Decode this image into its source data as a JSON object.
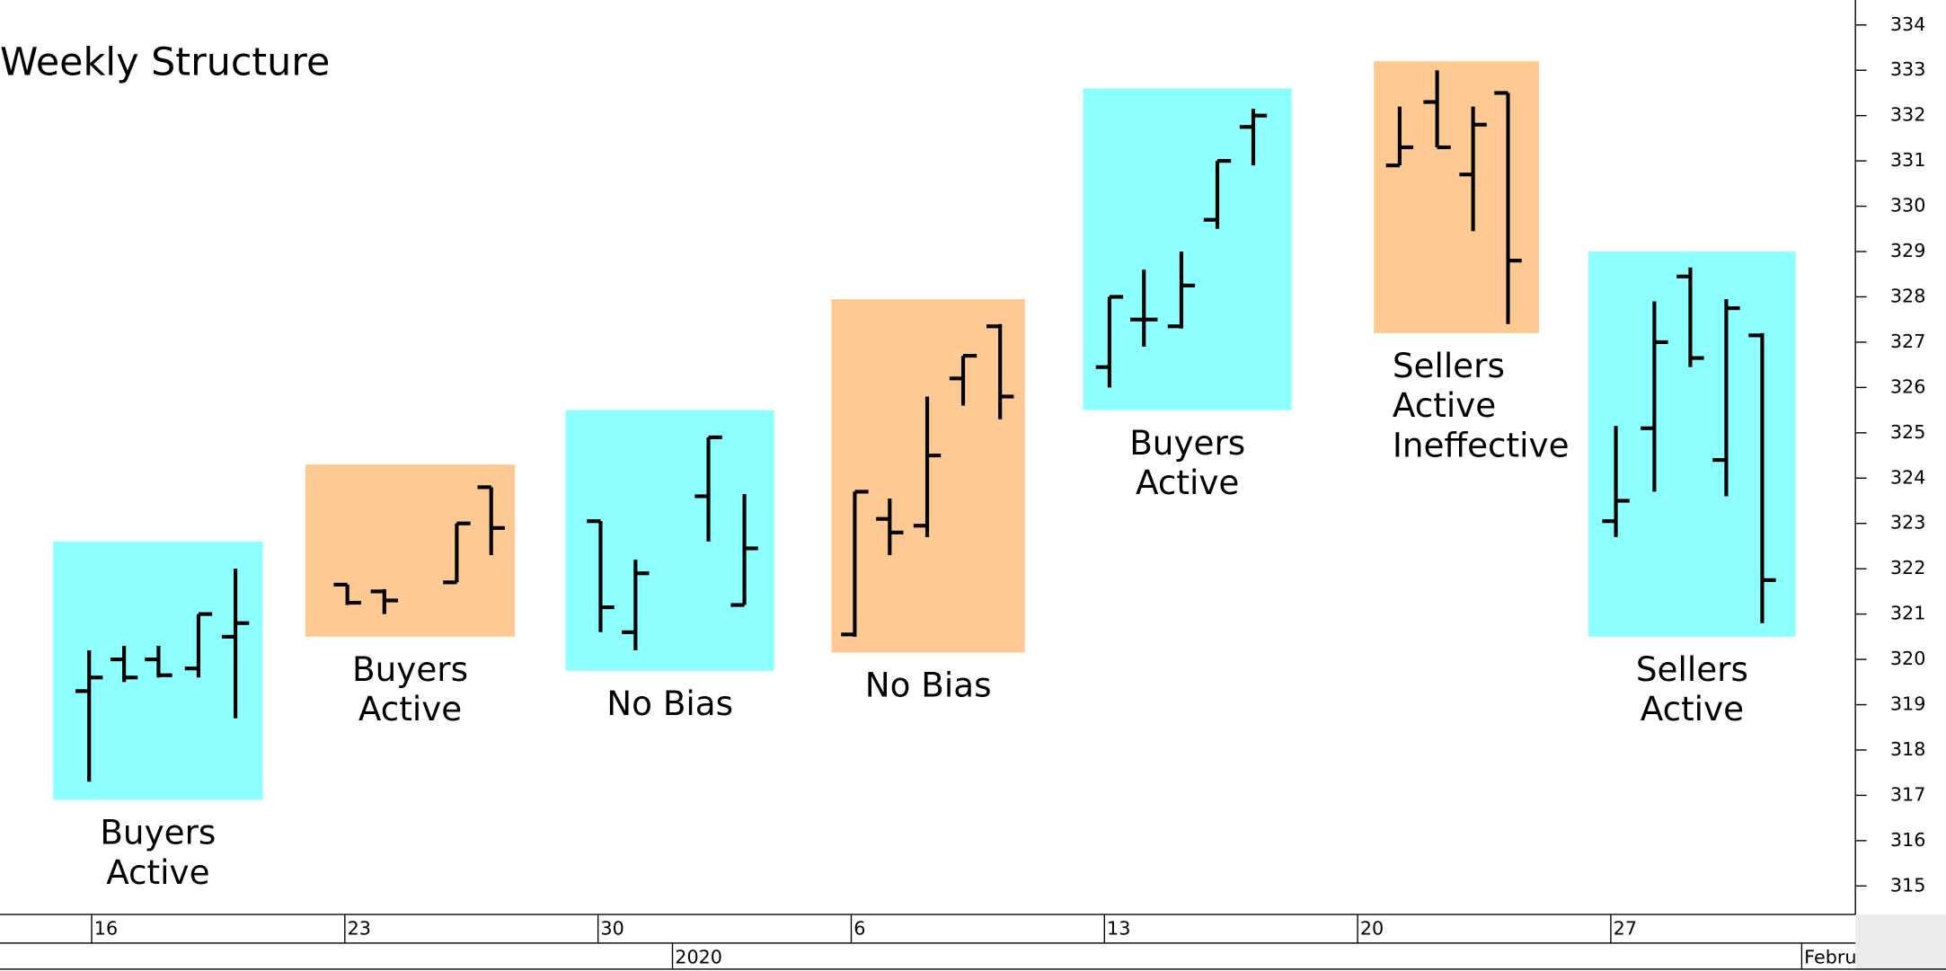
{
  "chart_data": {
    "type": "ohlc",
    "title": "Weekly Structure",
    "xlim": [
      -1.81,
      34.83
    ],
    "ylim": [
      314.37,
      334.55
    ],
    "yticks": [
      315,
      316,
      317,
      318,
      319,
      320,
      321,
      322,
      323,
      324,
      325,
      326,
      327,
      328,
      329,
      330,
      331,
      332,
      333,
      334
    ],
    "xticks": [
      {
        "value": 0,
        "label": "16"
      },
      {
        "value": 5,
        "label": "23"
      },
      {
        "value": 10,
        "label": "30"
      },
      {
        "value": 15,
        "label": "6"
      },
      {
        "value": 20,
        "label": "13"
      },
      {
        "value": 25,
        "label": "20"
      },
      {
        "value": 30,
        "label": "27"
      }
    ],
    "xticks2": [
      {
        "value": 11.47,
        "label": "2020"
      },
      {
        "value": 33.77,
        "label": "Febru"
      }
    ],
    "color": "#000000",
    "bars": [
      {
        "x": -0.05,
        "open": 319.3,
        "high": 320.2,
        "low": 317.3,
        "close": 319.6
      },
      {
        "x": 0.64,
        "open": 320.0,
        "high": 320.3,
        "low": 319.5,
        "close": 319.6
      },
      {
        "x": 1.32,
        "open": 320.0,
        "high": 320.3,
        "low": 319.6,
        "close": 319.65
      },
      {
        "x": 2.11,
        "open": 319.8,
        "high": 321.0,
        "low": 319.6,
        "close": 321.0
      },
      {
        "x": 2.84,
        "open": 320.5,
        "high": 322.0,
        "low": 318.7,
        "close": 320.8
      },
      {
        "x": 5.05,
        "open": 321.65,
        "high": 321.65,
        "low": 321.2,
        "close": 321.25
      },
      {
        "x": 5.78,
        "open": 321.5,
        "high": 321.55,
        "low": 321.0,
        "close": 321.3
      },
      {
        "x": 7.21,
        "open": 321.7,
        "high": 323.0,
        "low": 321.7,
        "close": 323.0
      },
      {
        "x": 7.89,
        "open": 323.8,
        "high": 323.8,
        "low": 322.3,
        "close": 322.9
      },
      {
        "x": 10.05,
        "open": 323.05,
        "high": 323.05,
        "low": 320.6,
        "close": 321.15
      },
      {
        "x": 10.74,
        "open": 320.6,
        "high": 322.2,
        "low": 320.2,
        "close": 321.9
      },
      {
        "x": 12.18,
        "open": 323.6,
        "high": 324.9,
        "low": 322.6,
        "close": 324.9
      },
      {
        "x": 12.89,
        "open": 321.2,
        "high": 323.65,
        "low": 321.2,
        "close": 322.45
      },
      {
        "x": 15.07,
        "open": 320.55,
        "high": 323.7,
        "low": 320.5,
        "close": 323.7
      },
      {
        "x": 15.76,
        "open": 323.1,
        "high": 323.55,
        "low": 322.3,
        "close": 322.8
      },
      {
        "x": 16.5,
        "open": 322.95,
        "high": 325.8,
        "low": 322.7,
        "close": 324.5
      },
      {
        "x": 17.21,
        "open": 326.2,
        "high": 326.7,
        "low": 325.6,
        "close": 326.7
      },
      {
        "x": 17.94,
        "open": 327.35,
        "high": 327.4,
        "low": 325.3,
        "close": 325.8
      },
      {
        "x": 20.1,
        "open": 326.45,
        "high": 328.0,
        "low": 326.0,
        "close": 328.0
      },
      {
        "x": 20.78,
        "open": 327.5,
        "high": 328.6,
        "low": 326.9,
        "close": 327.5
      },
      {
        "x": 21.52,
        "open": 327.35,
        "high": 329.0,
        "low": 327.3,
        "close": 328.25
      },
      {
        "x": 22.23,
        "open": 329.7,
        "high": 331.0,
        "low": 329.5,
        "close": 331.0
      },
      {
        "x": 22.94,
        "open": 331.75,
        "high": 332.15,
        "low": 330.9,
        "close": 332.0
      },
      {
        "x": 25.83,
        "open": 330.9,
        "high": 332.2,
        "low": 330.9,
        "close": 331.3
      },
      {
        "x": 26.57,
        "open": 332.3,
        "high": 333.0,
        "low": 331.3,
        "close": 331.3
      },
      {
        "x": 27.28,
        "open": 330.7,
        "high": 332.2,
        "low": 329.45,
        "close": 331.8
      },
      {
        "x": 27.97,
        "open": 332.5,
        "high": 332.5,
        "low": 327.4,
        "close": 328.8
      },
      {
        "x": 30.1,
        "open": 323.05,
        "high": 325.15,
        "low": 322.7,
        "close": 323.5
      },
      {
        "x": 30.86,
        "open": 325.1,
        "high": 327.9,
        "low": 323.7,
        "close": 327.0
      },
      {
        "x": 31.57,
        "open": 328.45,
        "high": 328.65,
        "low": 326.45,
        "close": 326.65
      },
      {
        "x": 32.28,
        "open": 324.4,
        "high": 327.95,
        "low": 323.6,
        "close": 327.75
      },
      {
        "x": 32.99,
        "open": 327.15,
        "high": 327.2,
        "low": 320.8,
        "close": 321.75
      }
    ],
    "boxes": [
      {
        "x": [
          -0.76,
          3.38
        ],
        "y": [
          316.9,
          322.6
        ],
        "color": "#8effff",
        "label": [
          "Buyers",
          "Active"
        ]
      },
      {
        "x": [
          4.22,
          8.36
        ],
        "y": [
          320.5,
          324.3
        ],
        "color": "#ffc993",
        "label": [
          "Buyers",
          "Active"
        ]
      },
      {
        "x": [
          9.36,
          13.48
        ],
        "y": [
          319.75,
          325.5
        ],
        "color": "#8effff",
        "label": [
          "No Bias"
        ]
      },
      {
        "x": [
          14.61,
          18.43
        ],
        "y": [
          320.15,
          327.95
        ],
        "color": "#ffc993",
        "label": [
          "No Bias"
        ]
      },
      {
        "x": [
          19.58,
          23.7
        ],
        "y": [
          325.5,
          332.6
        ],
        "color": "#8effff",
        "label": [
          "Buyers",
          "Active"
        ]
      },
      {
        "x": [
          25.32,
          28.58
        ],
        "y": [
          327.2,
          333.2
        ],
        "color": "#ffc993",
        "label": [
          "Sellers",
          "Active",
          "Ineffective"
        ],
        "label_align": "left"
      },
      {
        "x": [
          29.56,
          33.65
        ],
        "y": [
          320.5,
          329.0
        ],
        "color": "#8effff",
        "label": [
          "Sellers",
          "Active"
        ]
      }
    ]
  }
}
